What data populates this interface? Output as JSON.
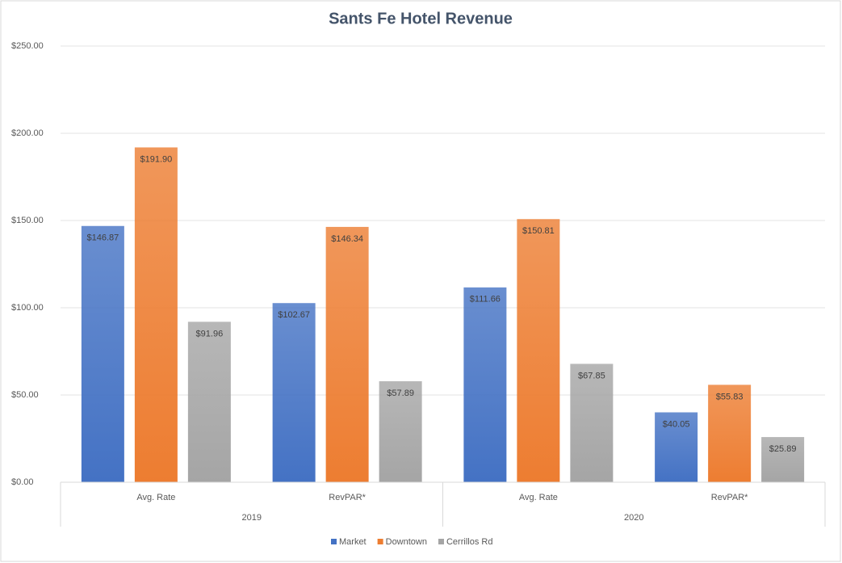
{
  "chart_data": {
    "type": "bar",
    "title": "Sants Fe Hotel Revenue",
    "categories": [
      "Avg. Rate",
      "RevPAR*",
      "Avg. Rate",
      "RevPAR*"
    ],
    "category_groups": [
      "2019",
      "2020"
    ],
    "series": [
      {
        "name": "Market",
        "color": "#4472c4",
        "values": [
          146.87,
          102.67,
          111.66,
          40.05
        ],
        "value_labels": [
          "$146.87",
          "$102.67",
          "$111.66",
          "$40.05"
        ]
      },
      {
        "name": "Downtown",
        "color": "#ed7d31",
        "values": [
          191.9,
          146.34,
          150.81,
          55.83
        ],
        "value_labels": [
          "$191.90",
          "$146.34",
          "$150.81",
          "$55.83"
        ]
      },
      {
        "name": "Cerrillos Rd",
        "color": "#a5a5a5",
        "values": [
          91.96,
          57.89,
          67.85,
          25.89
        ],
        "value_labels": [
          "$91.96",
          "$57.89",
          "$67.85",
          "$25.89"
        ]
      }
    ],
    "ylim": [
      0,
      250
    ],
    "yticks": [
      {
        "value": 0,
        "label": "$0.00"
      },
      {
        "value": 50,
        "label": "$50.00"
      },
      {
        "value": 100,
        "label": "$100.00"
      },
      {
        "value": 150,
        "label": "$150.00"
      },
      {
        "value": 200,
        "label": "$200.00"
      },
      {
        "value": 250,
        "label": "$250.00"
      }
    ],
    "grid": true,
    "legend": "bottom"
  }
}
